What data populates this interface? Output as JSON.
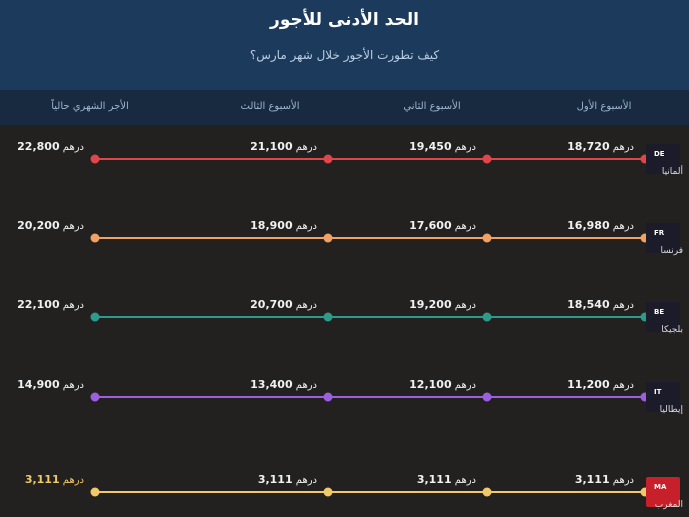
{
  "header": {
    "title": "الحد الأدنى للأجور",
    "subtitle": "كيف تطورت الأجور خلال شهر مارس؟"
  },
  "columns": [
    "الأسبوع الأول",
    "الأسبوع الثاني",
    "الأسبوع الثالث",
    "الأجر الشهري حالياً"
  ],
  "unit": "درهم",
  "rows": [
    {
      "code": "DE",
      "country": "ألمانيا",
      "color": "#e0454a",
      "values": [
        "18,720",
        "19,450",
        "21,100",
        "22,800"
      ]
    },
    {
      "code": "FR",
      "country": "فرنسا",
      "color": "#f0a164",
      "values": [
        "16,980",
        "17,600",
        "18,900",
        "20,200"
      ]
    },
    {
      "code": "BE",
      "country": "بلجيكا",
      "color": "#2e9a8c",
      "values": [
        "18,540",
        "19,200",
        "20,700",
        "22,100"
      ]
    },
    {
      "code": "IT",
      "country": "إيطاليا",
      "color": "#9b5fe0",
      "values": [
        "11,200",
        "12,100",
        "13,400",
        "14,900"
      ]
    },
    {
      "code": "MA",
      "country": "المغرب",
      "color": "#f2c96a",
      "values": [
        "3,111",
        "3,111",
        "3,111",
        "3,111"
      ],
      "highlight": true,
      "badge_color": "#c8202b"
    }
  ]
}
